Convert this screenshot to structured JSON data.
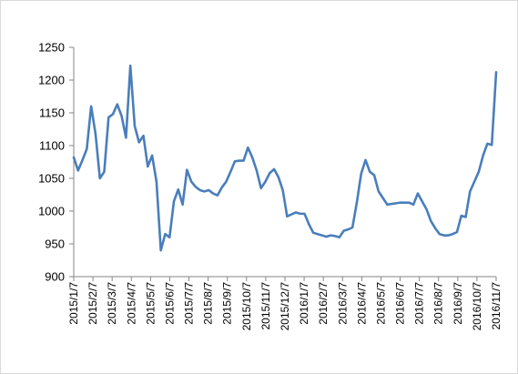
{
  "chart_data": {
    "type": "line",
    "title": "",
    "xlabel": "",
    "ylabel": "",
    "ylim": [
      900,
      1250
    ],
    "yticks": [
      900,
      950,
      1000,
      1050,
      1100,
      1150,
      1200,
      1250
    ],
    "x_tick_labels": [
      "2015/1/7",
      "2015/2/7",
      "2015/3/7",
      "2015/4/7",
      "2015/5/7",
      "2015/6/7",
      "2015/7/7",
      "2015/8/7",
      "2015/9/7",
      "2015/10/7",
      "2015/11/7",
      "2015/12/7",
      "2016/1/7",
      "2016/2/7",
      "2016/3/7",
      "2016/4/7",
      "2016/5/7",
      "2016/6/7",
      "2016/7/7",
      "2016/8/7",
      "2016/9/7",
      "2016/10/7",
      "2016/11/7"
    ],
    "grid": false,
    "legend": "none",
    "line_color": "#4a7ebb",
    "series": [
      {
        "values": [
          1082,
          1062,
          1078,
          1095,
          1160,
          1118,
          1050,
          1060,
          1143,
          1148,
          1163,
          1145,
          1112,
          1222,
          1130,
          1105,
          1115,
          1068,
          1085,
          1045,
          940,
          965,
          960,
          1015,
          1033,
          1010,
          1063,
          1045,
          1037,
          1032,
          1030,
          1032,
          1027,
          1024,
          1036,
          1045,
          1060,
          1076,
          1077,
          1077,
          1097,
          1082,
          1062,
          1035,
          1045,
          1058,
          1064,
          1052,
          1032,
          992,
          995,
          998,
          996,
          996,
          980,
          967,
          965,
          963,
          961,
          963,
          962,
          960,
          970,
          972,
          975,
          1013,
          1057,
          1078,
          1060,
          1055,
          1030,
          1020,
          1010,
          1011,
          1012,
          1013,
          1013,
          1013,
          1010,
          1027,
          1015,
          1003,
          985,
          974,
          965,
          963,
          963,
          965,
          968,
          993,
          991,
          1030,
          1045,
          1060,
          1085,
          1103,
          1101,
          1212
        ]
      }
    ]
  }
}
